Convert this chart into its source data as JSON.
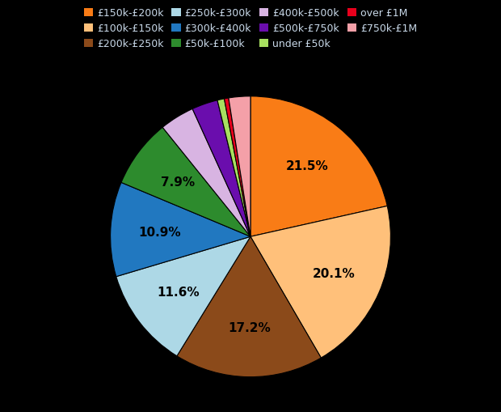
{
  "slices": [
    {
      "label": "£150k-£200k",
      "value": 21.5,
      "color": "#f97c16"
    },
    {
      "label": "£100k-£150k",
      "value": 20.1,
      "color": "#ffc07a"
    },
    {
      "label": "£200k-£250k",
      "value": 17.2,
      "color": "#8b4a1a"
    },
    {
      "label": "£250k-£300k",
      "value": 11.6,
      "color": "#add8e6"
    },
    {
      "label": "£300k-£400k",
      "value": 10.9,
      "color": "#2178c0"
    },
    {
      "label": "£50k-£100k",
      "value": 7.9,
      "color": "#2d8b2d"
    },
    {
      "label": "£400k-£500k",
      "value": 4.0,
      "color": "#d8b4e2"
    },
    {
      "label": "£500k-£750k",
      "value": 3.0,
      "color": "#6a0dad"
    },
    {
      "label": "under £50k",
      "value": 0.8,
      "color": "#a8e060"
    },
    {
      "label": "over £1M",
      "value": 0.5,
      "color": "#e8001c"
    },
    {
      "label": "£750k-£1M",
      "value": 2.5,
      "color": "#f4a0a8"
    }
  ],
  "legend_order": [
    "£150k-£200k",
    "£100k-£150k",
    "£200k-£250k",
    "£250k-£300k",
    "£300k-£400k",
    "£50k-£100k",
    "£400k-£500k",
    "£500k-£750k",
    "under £50k",
    "over £1M",
    "£750k-£1M"
  ],
  "background_color": "#000000",
  "text_color": "#c8d8e8",
  "label_color": "#000000",
  "legend_fontsize": 9,
  "pct_fontsize": 11,
  "shown_pcts": [
    "21.5%",
    "20.1%",
    "17.2%",
    "11.6%",
    "10.9%",
    "7.9%"
  ]
}
